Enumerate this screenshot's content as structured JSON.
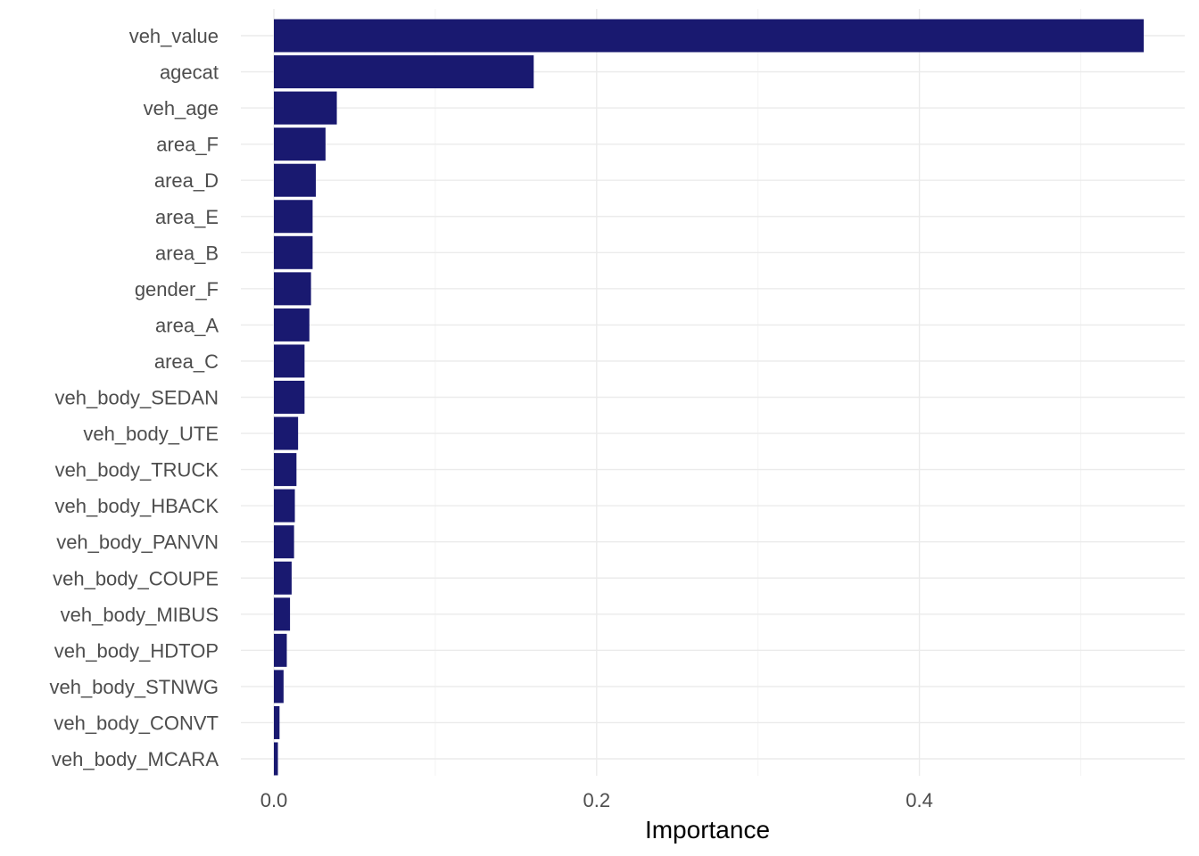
{
  "chart_data": {
    "type": "bar",
    "orientation": "horizontal",
    "title": "",
    "xlabel": "Importance",
    "ylabel": "",
    "xlim": [
      -0.0,
      0.54
    ],
    "x_ticks": [
      0.0,
      0.2,
      0.4
    ],
    "x_tick_labels": [
      "0.0",
      "0.2",
      "0.4"
    ],
    "grid": true,
    "legend": "none",
    "bar_color": "#191970",
    "categories": [
      "veh_value",
      "agecat",
      "veh_age",
      "area_F",
      "area_D",
      "area_E",
      "area_B",
      "gender_F",
      "area_A",
      "area_C",
      "veh_body_SEDAN",
      "veh_body_UTE",
      "veh_body_TRUCK",
      "veh_body_HBACK",
      "veh_body_PANVN",
      "veh_body_COUPE",
      "veh_body_MIBUS",
      "veh_body_HDTOP",
      "veh_body_STNWG",
      "veh_body_CONVT",
      "veh_body_MCARA"
    ],
    "values": [
      0.539,
      0.161,
      0.039,
      0.032,
      0.026,
      0.024,
      0.024,
      0.023,
      0.022,
      0.019,
      0.019,
      0.015,
      0.014,
      0.013,
      0.0125,
      0.011,
      0.01,
      0.008,
      0.006,
      0.0035,
      0.0025
    ]
  }
}
